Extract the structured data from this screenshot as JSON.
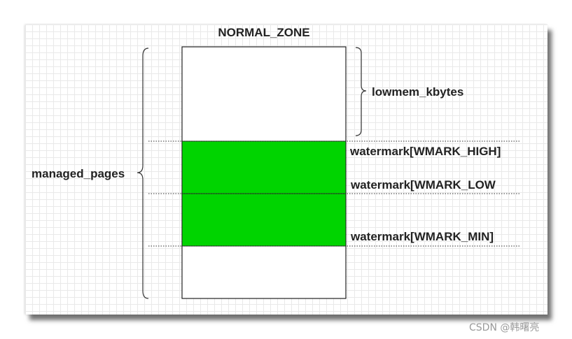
{
  "diagram": {
    "title": "NORMAL_ZONE",
    "labels": {
      "managed_pages": "managed_pages",
      "lowmem_kbytes": "lowmem_kbytes",
      "wmark_high": "watermark[WMARK_HIGH]",
      "wmark_low": "watermark[WMARK_LOW",
      "wmark_min": "watermark[WMARK_MIN]"
    },
    "colors": {
      "watermark_fill": "#00d400",
      "box_stroke": "#222222",
      "grid": "#e9e9e9"
    }
  },
  "footer": {
    "watermark": "CSDN @韩曙亮"
  }
}
